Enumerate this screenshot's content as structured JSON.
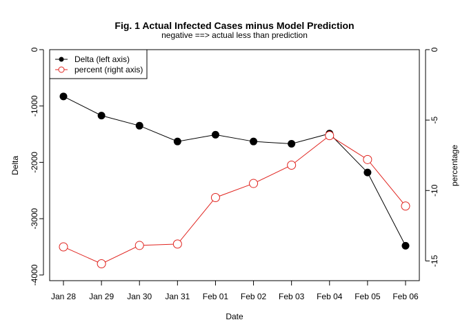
{
  "chart_data": {
    "type": "line",
    "title": "Fig. 1 Actual Infected Cases minus Model Prediction",
    "subtitle": "negative ==> actual less than prediction",
    "xlabel": "Date",
    "ylabel": "Delta",
    "y2label": "percentage",
    "categories": [
      "Jan 28",
      "Jan 29",
      "Jan 30",
      "Jan 31",
      "Feb 01",
      "Feb 02",
      "Feb 03",
      "Feb 04",
      "Feb 05",
      "Feb 06"
    ],
    "ylim": [
      -4100,
      0
    ],
    "y2lim": [
      -16.4,
      0
    ],
    "yticks": [
      0,
      -1000,
      -2000,
      -3000,
      -4000
    ],
    "y2ticks": [
      0,
      -5,
      -10,
      -15
    ],
    "grid": false,
    "legend_position": "top-left",
    "series": [
      {
        "name": "Delta (left axis)",
        "axis": "left",
        "color": "#000000",
        "marker": "filled-circle",
        "values": [
          -830,
          -1170,
          -1350,
          -1630,
          -1510,
          -1630,
          -1670,
          -1490,
          -2180,
          -3480
        ]
      },
      {
        "name": "percent (right axis)",
        "axis": "right",
        "color": "#e0231e",
        "marker": "open-circle",
        "values": [
          -14.0,
          -15.2,
          -13.9,
          -13.8,
          -10.5,
          -9.5,
          -8.2,
          -6.1,
          -7.8,
          -11.1
        ]
      }
    ]
  }
}
